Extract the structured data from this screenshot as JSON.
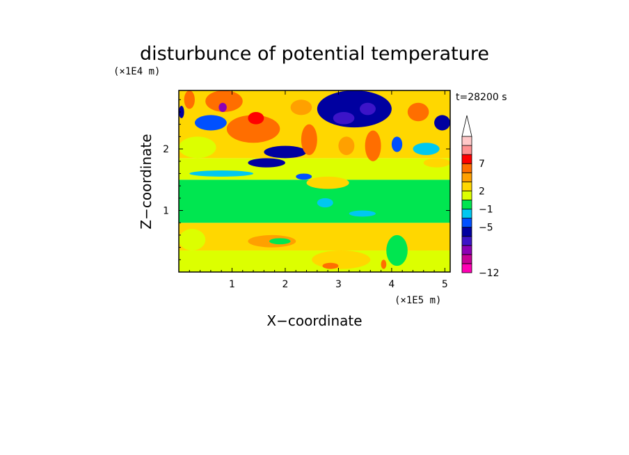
{
  "chart_data": {
    "type": "heatmap",
    "title": "disturbunce of potential temperature",
    "xlabel": "X−coordinate",
    "ylabel": "Z−coordinate",
    "x_unit": "(×1E5 m)",
    "y_unit": "(×1E4 m)",
    "time_label": "t=28200 s",
    "xlim": [
      0,
      5.1
    ],
    "ylim": [
      0,
      2.95
    ],
    "x_ticks": [
      1,
      2,
      3,
      4,
      5
    ],
    "x_tick_labels": [
      "1",
      "2",
      "3",
      "4",
      "5"
    ],
    "y_ticks": [
      1,
      2
    ],
    "y_tick_labels": [
      "1",
      "2"
    ],
    "colorbar": {
      "levels": [
        {
          "color": "#ff00b4"
        },
        {
          "color": "#c80096"
        },
        {
          "color": "#8c00b4"
        },
        {
          "color": "#3c14c8"
        },
        {
          "color": "#0000a0"
        },
        {
          "color": "#0050ff"
        },
        {
          "color": "#00c8f0"
        },
        {
          "color": "#00e650"
        },
        {
          "color": "#dcff00"
        },
        {
          "color": "#ffd700"
        },
        {
          "color": "#ffa000"
        },
        {
          "color": "#ff6e00"
        },
        {
          "color": "#ff0000"
        },
        {
          "color": "#ff9090"
        },
        {
          "color": "#ffc8c8"
        }
      ],
      "tick_labels": [
        {
          "label": "−12",
          "level": 0
        },
        {
          "label": "−5",
          "level": 5
        },
        {
          "label": "−1",
          "level": 7
        },
        {
          "label": "2",
          "level": 9
        },
        {
          "label": "7",
          "level": 12
        }
      ]
    },
    "regions": [
      {
        "x0": 0,
        "x1": 5.1,
        "y0": 0,
        "y1": 0.35,
        "c": 8
      },
      {
        "x0": 0,
        "x1": 5.1,
        "y0": 0.35,
        "y1": 0.8,
        "c": 9
      },
      {
        "x0": 0,
        "x1": 5.1,
        "y0": 0.8,
        "y1": 1.5,
        "c": 7
      },
      {
        "x0": 0,
        "x1": 5.1,
        "y0": 1.5,
        "y1": 1.85,
        "c": 8
      },
      {
        "x0": 0,
        "x1": 5.1,
        "y0": 1.85,
        "y1": 2.95,
        "c": 9
      },
      {
        "x0": 0,
        "x1": 0.5,
        "y0": 0.35,
        "y1": 0.7,
        "c": 8
      },
      {
        "x0": 1.3,
        "x1": 2.2,
        "y0": 0.4,
        "y1": 0.6,
        "c": 10
      },
      {
        "x0": 2.5,
        "x1": 3.6,
        "y0": 0.05,
        "y1": 0.35,
        "c": 9
      },
      {
        "x0": 4.0,
        "x1": 5.1,
        "y0": 0.0,
        "y1": 0.35,
        "c": 8
      },
      {
        "x0": 3.9,
        "x1": 4.3,
        "y0": 0.1,
        "y1": 0.6,
        "c": 7
      },
      {
        "x0": 2.7,
        "x1": 3.0,
        "y0": 0.05,
        "y1": 0.15,
        "c": 11
      },
      {
        "x0": 3.8,
        "x1": 3.9,
        "y0": 0.05,
        "y1": 0.2,
        "c": 11
      },
      {
        "x0": 1.7,
        "x1": 2.1,
        "y0": 0.45,
        "y1": 0.55,
        "c": 7
      },
      {
        "x0": 3.2,
        "x1": 3.7,
        "y0": 0.9,
        "y1": 1.0,
        "c": 6
      },
      {
        "x0": 0.2,
        "x1": 1.4,
        "y0": 1.55,
        "y1": 1.65,
        "c": 6
      },
      {
        "x0": 2.4,
        "x1": 3.2,
        "y0": 1.35,
        "y1": 1.55,
        "c": 9
      },
      {
        "x0": 0.0,
        "x1": 0.7,
        "y0": 1.85,
        "y1": 2.2,
        "c": 8
      },
      {
        "x0": 0.9,
        "x1": 1.9,
        "y0": 2.1,
        "y1": 2.55,
        "c": 11
      },
      {
        "x0": 1.3,
        "x1": 1.6,
        "y0": 2.4,
        "y1": 2.6,
        "c": 12
      },
      {
        "x0": 0.3,
        "x1": 0.9,
        "y0": 2.3,
        "y1": 2.55,
        "c": 5
      },
      {
        "x0": 1.3,
        "x1": 2.0,
        "y0": 1.7,
        "y1": 1.85,
        "c": 4
      },
      {
        "x0": 1.6,
        "x1": 2.4,
        "y0": 1.85,
        "y1": 2.05,
        "c": 4
      },
      {
        "x0": 0.5,
        "x1": 1.2,
        "y0": 2.6,
        "y1": 2.95,
        "c": 11
      },
      {
        "x0": 0.75,
        "x1": 0.9,
        "y0": 2.6,
        "y1": 2.75,
        "c": 2
      },
      {
        "x0": 2.1,
        "x1": 2.5,
        "y0": 2.55,
        "y1": 2.8,
        "c": 10
      },
      {
        "x0": 2.6,
        "x1": 4.0,
        "y0": 2.35,
        "y1": 2.95,
        "c": 4
      },
      {
        "x0": 2.9,
        "x1": 3.3,
        "y0": 2.4,
        "y1": 2.6,
        "c": 3
      },
      {
        "x0": 3.4,
        "x1": 3.7,
        "y0": 2.55,
        "y1": 2.75,
        "c": 3
      },
      {
        "x0": 4.3,
        "x1": 4.7,
        "y0": 2.45,
        "y1": 2.75,
        "c": 11
      },
      {
        "x0": 4.8,
        "x1": 5.1,
        "y0": 2.3,
        "y1": 2.55,
        "c": 4
      },
      {
        "x0": 2.3,
        "x1": 2.6,
        "y0": 1.9,
        "y1": 2.4,
        "c": 11
      },
      {
        "x0": 3.0,
        "x1": 3.3,
        "y0": 1.9,
        "y1": 2.2,
        "c": 10
      },
      {
        "x0": 3.5,
        "x1": 3.8,
        "y0": 1.8,
        "y1": 2.3,
        "c": 11
      },
      {
        "x0": 4.0,
        "x1": 4.2,
        "y0": 1.95,
        "y1": 2.2,
        "c": 5
      },
      {
        "x0": 4.4,
        "x1": 4.9,
        "y0": 1.9,
        "y1": 2.1,
        "c": 6
      },
      {
        "x0": 2.2,
        "x1": 2.5,
        "y0": 1.5,
        "y1": 1.6,
        "c": 5
      },
      {
        "x0": 2.6,
        "x1": 2.9,
        "y0": 1.05,
        "y1": 1.2,
        "c": 6
      },
      {
        "x0": 4.6,
        "x1": 5.1,
        "y0": 1.7,
        "y1": 1.85,
        "c": 9
      },
      {
        "x0": 0.0,
        "x1": 0.1,
        "y0": 2.5,
        "y1": 2.7,
        "c": 4
      },
      {
        "x0": 0.1,
        "x1": 0.3,
        "y0": 2.65,
        "y1": 2.95,
        "c": 11
      }
    ]
  }
}
